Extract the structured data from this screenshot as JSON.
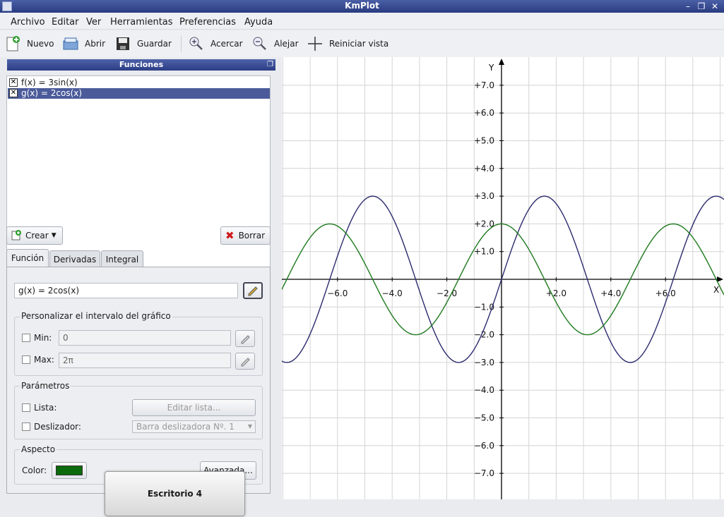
{
  "window": {
    "title": "KmPlot"
  },
  "menu": [
    "Archivo",
    "Editar",
    "Ver",
    "Herramientas",
    "Preferencias",
    "Ayuda"
  ],
  "toolbar": {
    "new": "Nuevo",
    "open": "Abrir",
    "save": "Guardar",
    "zoom_in": "Acercar",
    "zoom_out": "Alejar",
    "reset_view": "Reiniciar vista"
  },
  "functions_panel": {
    "title": "Funciones",
    "items": [
      {
        "label": "f(x) = 3sin(x)",
        "checked": true,
        "selected": false
      },
      {
        "label": "g(x) = 2cos(x)",
        "checked": true,
        "selected": true
      }
    ],
    "create_label": "Crear",
    "delete_label": "Borrar"
  },
  "tabs": [
    "Función",
    "Derivadas",
    "Integral"
  ],
  "editor": {
    "equation": "g(x) = 2cos(x)",
    "range_group": "Personalizar el intervalo del gráfico",
    "min_label": "Min:",
    "min_value": "0",
    "max_label": "Max:",
    "max_value": "2π",
    "params_group": "Parámetros",
    "list_label": "Lista:",
    "edit_list": "Editar lista...",
    "slider_label": "Deslizador:",
    "slider_value": "Barra deslizadora Nº. 1",
    "appearance_group": "Aspecto",
    "color_label": "Color:",
    "color": "#0b6a0b",
    "advanced": "Avanzada..."
  },
  "desktop_popup": "Escritorio 4",
  "colors": {
    "f": "#2b2a6e",
    "g": "#1e7a1e",
    "selection": "#4b5b9a"
  },
  "chart_data": {
    "type": "line",
    "xlabel": "X",
    "ylabel": "Y",
    "xlim": [
      -8.0,
      8.2
    ],
    "ylim": [
      -7.9,
      7.9
    ],
    "x_ticks": [
      "−6.0",
      "−4.0",
      "−2.0",
      "+2.0",
      "+4.0",
      "+6.0"
    ],
    "x_tick_values": [
      -6,
      -4,
      -2,
      2,
      4,
      6
    ],
    "y_ticks": [
      "+7.0",
      "+6.0",
      "+5.0",
      "+4.0",
      "+3.0",
      "+2.0",
      "+1.0",
      "−1.0",
      "−2.0",
      "−3.0",
      "−4.0",
      "−5.0",
      "−6.0",
      "−7.0"
    ],
    "y_tick_values": [
      7,
      6,
      5,
      4,
      3,
      2,
      1,
      -1,
      -2,
      -3,
      -4,
      -5,
      -6,
      -7
    ],
    "grid": true,
    "series": [
      {
        "name": "f(x) = 3sin(x)",
        "amplitude": 3,
        "fn": "sin",
        "color": "#2b2a6e"
      },
      {
        "name": "g(x) = 2cos(x)",
        "amplitude": 2,
        "fn": "cos",
        "color": "#1e7a1e"
      }
    ]
  }
}
